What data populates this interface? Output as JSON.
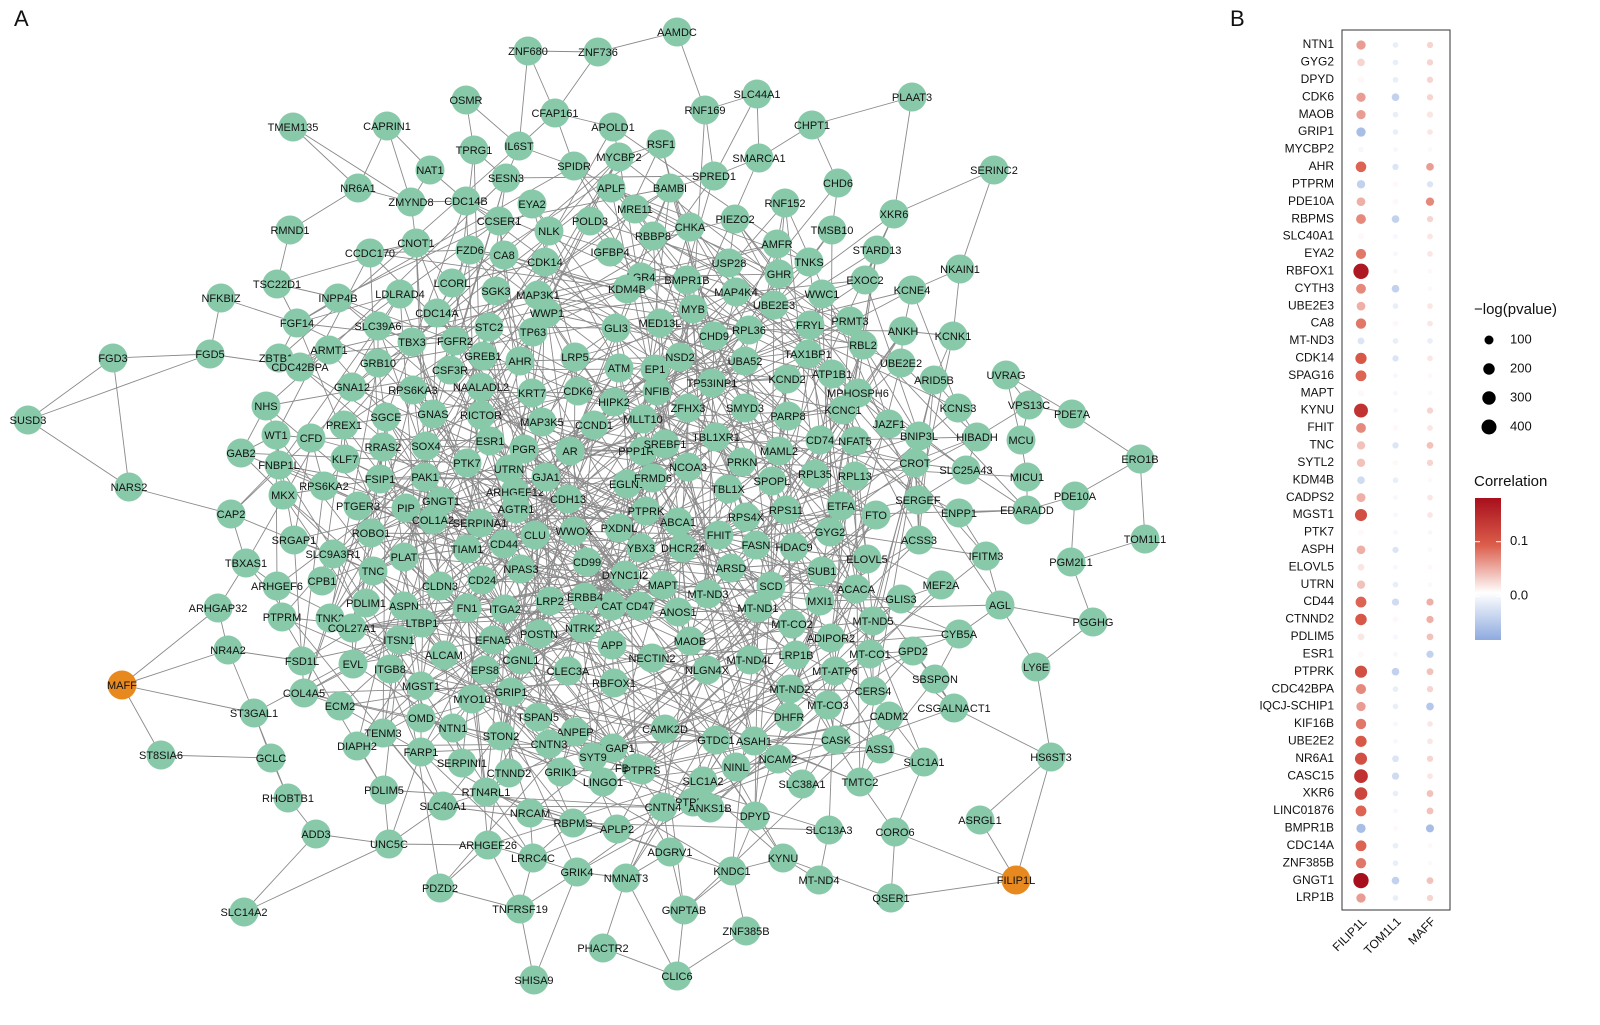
{
  "panels": [
    "A",
    "B"
  ],
  "network": {
    "node_color": "#88c9aa",
    "query_color": "#e8891f",
    "edge_color": "#8a8a8a",
    "nodes": [
      "AAMDC",
      "ZNF680",
      "ZNF736",
      "OSMR",
      "SLC44A1",
      "RNF169",
      "CFAP161",
      "PLAAT3",
      "APOLD1",
      "CAPRIN1",
      "TMEM135",
      "CHPT1",
      "RSF1",
      "TPRG1",
      "IL6ST",
      "MYCBP2",
      "SMARCA1",
      "NAT1",
      "SERINC2",
      "SESN3",
      "SPIDR",
      "SPRED1",
      "NR6A1",
      "CHD6",
      "ZMYND8",
      "CDC14B",
      "APLF",
      "BAMBI",
      "RNF152",
      "XKR6",
      "EYA2",
      "CCSER1",
      "MRE11",
      "RMND1",
      "CNOT1",
      "POLD3",
      "CHKA",
      "PIEZO2",
      "TMSB10",
      "NLK",
      "FZD6",
      "IGFBP4",
      "CA8",
      "RBBP8",
      "STARD13",
      "CCDC170",
      "AMFR",
      "CDK14",
      "USP28",
      "TNKS",
      "TSC22D1",
      "NFKBIZ",
      "LCORL",
      "GHR",
      "NKAIN1",
      "LDLRAD4",
      "MAP3K1",
      "LGR4",
      "KDM4B",
      "BMPR1B",
      "EXOC2",
      "INPP4B",
      "SGK3",
      "MAP4K4",
      "KCNE4",
      "UBE2E3",
      "WWC1",
      "FGF14",
      "CDC14A",
      "WWP1",
      "SLC39A6",
      "MYB",
      "STC2",
      "TP63",
      "GLI3",
      "MED13L",
      "FRYL",
      "PRMT3",
      "ANKH",
      "KCNK1",
      "ARMT1",
      "FGFR2",
      "TBX3",
      "RPL36",
      "CHD9",
      "RBL2",
      "GRB10",
      "LRP5",
      "TAX1BP1",
      "FGD3",
      "FGD5",
      "ZBTB18",
      "GREB1",
      "ATM",
      "EP1",
      "NSD2",
      "UBA52",
      "UBE2E2",
      "CDC42BPA",
      "GNA12",
      "AHR",
      "ATP1B1",
      "ARID5B",
      "UVRAG",
      "CSF3R",
      "RPS6KA3",
      "NAALADL2",
      "KRT7",
      "CDK6",
      "NFIB",
      "TP53INP1",
      "KCND2",
      "MPHOSPH6",
      "NHS",
      "HIPK2",
      "PREX1",
      "SGCE",
      "RICTOR",
      "GNAS",
      "ZFHX3",
      "SMYD3",
      "KCNS3",
      "VPS13C",
      "PDE7A",
      "WT1",
      "CFD",
      "MAP3K5",
      "MLLT10",
      "PARP8",
      "KCNC1",
      "JAZF1",
      "HIBADH",
      "ESR1",
      "CCND1",
      "GAB2",
      "RRAS2",
      "SOX4",
      "PGR",
      "AR",
      "PPP1R9A",
      "TBL1XR1",
      "SREBF1",
      "CD74",
      "NFAT5",
      "BNIP3L",
      "MCU",
      "ERO1B",
      "FNBP1L",
      "KLF7",
      "PTK7",
      "UTRN",
      "MAML2",
      "CROT",
      "SLC25A43",
      "MICU1",
      "NARS2",
      "FSIP1",
      "PAK1",
      "GNGT1",
      "ARHGEF12",
      "GJA1",
      "EGLN1",
      "FRMD6",
      "PRKN",
      "RPL35",
      "RPL13",
      "SPOPL",
      "RPS6KA2",
      "NCOA3",
      "TBL1X",
      "MKX",
      "PTGER3",
      "PIP",
      "CDH13",
      "ETFA",
      "FTO",
      "SERGEF",
      "PDE10A",
      "CAP2",
      "COL1A2",
      "SERPINA1",
      "AGTR1",
      "PTPRK",
      "ABCA1",
      "RPS4X",
      "RPS11",
      "ENPP1",
      "EDARADD",
      "TOM1L1",
      "SRGAP1",
      "ROBO1",
      "CLU",
      "WWOX",
      "PXDNL",
      "FHIT",
      "FASN",
      "HDAC9",
      "GYG2",
      "TIAM1",
      "CD44",
      "YBX3",
      "DHCR24",
      "ACSS3",
      "IFITM3",
      "SLC9A3R1",
      "PLAT",
      "CD99",
      "DYNC1I2",
      "ARSD",
      "SUB1",
      "ELOVL5",
      "TBXAS1",
      "CD24",
      "NPAS3",
      "CLDN3",
      "PGM2L1",
      "TNC",
      "ARHGEF6",
      "CPB1",
      "CAT",
      "CD47",
      "MAPT",
      "SCD",
      "MT-ND3",
      "ACACA",
      "MEF2A",
      "AGL",
      "GLIS3",
      "LRP2",
      "ERBB4",
      "ASPN",
      "PDLIM1",
      "FN1",
      "ITGA2",
      "MXI1",
      "MT-ND1",
      "ANOS1",
      "ARHGAP32",
      "PTPRM",
      "MT-ND5",
      "PGGHG",
      "TNK2",
      "COL27A1",
      "LTBP1",
      "EFNA5",
      "POSTN",
      "NTRK2",
      "MT-CO2",
      "CYB5A",
      "NR4A2",
      "ITSN1",
      "APP",
      "MAOB",
      "ADIPOR2",
      "GPD2",
      "MT-CO1",
      "FSD1L",
      "NECTIN2",
      "MT-ND4L",
      "LRP1B",
      "LY6E",
      "EVL",
      "ITGB8",
      "ALCAM",
      "CGNL1",
      "MT-ATP6",
      "EPS8",
      "NLGN4X",
      "CLEC3A",
      "COL4A5",
      "MGST1",
      "MT-ND2",
      "SBSPON",
      "ECM2",
      "MYO10",
      "GRIP1",
      "RBFOX1",
      "CERS4",
      "MT-CO3",
      "ST3GAL1",
      "CSGALNACT1",
      "CADM2",
      "OMD",
      "TSPAN5",
      "ANPEP",
      "CAMK2D",
      "GTDC1",
      "DHFR",
      "TENM3",
      "NTN1",
      "CASK",
      "ASAH1",
      "DIAPH2",
      "STON2",
      "DLGAP1",
      "FBXO32",
      "ASS1",
      "FARP1",
      "CNTN3",
      "SYT9",
      "NCAM2",
      "ST8SIA6",
      "GCLC",
      "SERPINI1",
      "SLC1A2",
      "NINL",
      "CTNND2",
      "GRIK1",
      "PTPRS",
      "HS6ST3",
      "SLC1A1",
      "RTN4RL1",
      "LINGO1",
      "TMTC2",
      "SLC38A1",
      "PTPRT",
      "PDLIM5",
      "RHOBTB1",
      "SLC40A1",
      "ANKS1B",
      "NRCAM",
      "ASRGL1",
      "CNTN4",
      "DPYD",
      "RBPMS",
      "APLP2",
      "ADD3",
      "SLC13A3",
      "CORO6",
      "UNC5C",
      "ARHGEF26",
      "LRRC4C",
      "ADGRV1",
      "KYNU",
      "PDZD2",
      "GRIK4",
      "NMNAT3",
      "KNDC1",
      "MT-ND4",
      "QSER1",
      "SLC14A2",
      "TNFRSF19",
      "GNPTAB",
      "ZNF385B",
      "PHACTR2",
      "CLIC6",
      "SHISA9",
      "SUSD3"
    ],
    "query_nodes": [
      "MAFF",
      "FILIP1L"
    ]
  },
  "chart_data": {
    "type": "dot",
    "categories": [
      "NTN1",
      "GYG2",
      "DPYD",
      "CDK6",
      "MAOB",
      "GRIP1",
      "MYCBP2",
      "AHR",
      "PTPRM",
      "PDE10A",
      "RBPMS",
      "SLC40A1",
      "EYA2",
      "RBFOX1",
      "CYTH3",
      "UBE2E3",
      "CA8",
      "MT-ND3",
      "CDK14",
      "SPAG16",
      "MAPT",
      "KYNU",
      "FHIT",
      "TNC",
      "SYTL2",
      "KDM4B",
      "CADPS2",
      "MGST1",
      "PTK7",
      "ASPH",
      "ELOVL5",
      "UTRN",
      "CD44",
      "CTNND2",
      "PDLIM5",
      "ESR1",
      "PTPRK",
      "CDC42BPA",
      "IQCJ-SCHIP1",
      "KIF16B",
      "UBE2E2",
      "NR6A1",
      "CASC15",
      "XKR6",
      "LINC01876",
      "BMPR1B",
      "CDC14A",
      "ZNF385B",
      "GNGT1",
      "LRP1B"
    ],
    "series": [
      {
        "name": "FILIP1L",
        "values": [
          0.06,
          0.03,
          0.01,
          0.06,
          0.06,
          -0.06,
          0,
          0.09,
          -0.04,
          0.05,
          0.07,
          0.01,
          0.08,
          0.17,
          0.07,
          0.05,
          0.08,
          -0.02,
          0.1,
          0.09,
          0.01,
          0.14,
          0.07,
          0.04,
          0.04,
          -0.03,
          0.05,
          0.11,
          0.01,
          0.05,
          0.02,
          0.04,
          0.09,
          0.1,
          0.02,
          0.01,
          0.11,
          0.07,
          0.06,
          0.08,
          0.1,
          0.11,
          0.14,
          0.12,
          0.09,
          -0.06,
          0.09,
          0.08,
          0.18,
          0.06
        ],
        "sizes": [
          110,
          60,
          40,
          110,
          110,
          110,
          20,
          160,
          80,
          90,
          130,
          30,
          140,
          420,
          130,
          90,
          150,
          40,
          190,
          170,
          30,
          330,
          130,
          80,
          80,
          60,
          100,
          230,
          20,
          90,
          40,
          80,
          170,
          200,
          40,
          30,
          230,
          140,
          110,
          150,
          190,
          230,
          320,
          260,
          170,
          110,
          170,
          150,
          420,
          110
        ]
      },
      {
        "name": "TOM1L1",
        "values": [
          -0.01,
          -0.01,
          -0.01,
          -0.04,
          -0.01,
          -0.01,
          0,
          -0.02,
          0.01,
          0.01,
          -0.04,
          0,
          0,
          0,
          -0.04,
          -0.01,
          0.01,
          -0.01,
          -0.02,
          0,
          0,
          0,
          0.01,
          -0.02,
          0.01,
          -0.01,
          0,
          0,
          0,
          -0.02,
          0,
          -0.01,
          -0.03,
          0.01,
          0,
          0,
          -0.04,
          -0.01,
          -0.01,
          0,
          0,
          -0.02,
          -0.03,
          -0.01,
          0,
          0.01,
          -0.01,
          -0.01,
          -0.04,
          -0.01
        ],
        "sizes": [
          20,
          20,
          20,
          60,
          20,
          20,
          10,
          30,
          20,
          20,
          60,
          10,
          10,
          10,
          60,
          20,
          20,
          20,
          30,
          10,
          10,
          10,
          20,
          30,
          20,
          20,
          10,
          10,
          10,
          30,
          10,
          20,
          50,
          20,
          10,
          10,
          60,
          20,
          20,
          10,
          10,
          40,
          50,
          20,
          10,
          10,
          20,
          20,
          60,
          20
        ]
      },
      {
        "name": "MAFF",
        "values": [
          0.03,
          0.03,
          0.03,
          0.03,
          0.02,
          0.02,
          0.01,
          0.06,
          -0.02,
          0.07,
          0.03,
          0.02,
          0.02,
          0.01,
          0.01,
          0.02,
          0.02,
          -0.01,
          0.02,
          0.01,
          0.01,
          0.03,
          0.02,
          0.04,
          0.03,
          0.01,
          0.02,
          0.02,
          0,
          0.01,
          0.01,
          0.01,
          0.05,
          0.05,
          0.04,
          -0.04,
          0.04,
          0.03,
          -0.05,
          0.02,
          0.02,
          0.03,
          0.02,
          0.04,
          0.04,
          -0.06,
          0.01,
          0.01,
          0.04,
          0.03
        ],
        "sizes": [
          30,
          30,
          30,
          30,
          30,
          20,
          10,
          60,
          30,
          80,
          30,
          20,
          20,
          10,
          10,
          20,
          20,
          20,
          20,
          10,
          10,
          30,
          20,
          40,
          30,
          10,
          20,
          20,
          10,
          10,
          10,
          10,
          50,
          50,
          40,
          50,
          40,
          30,
          60,
          20,
          20,
          30,
          20,
          40,
          40,
          70,
          10,
          10,
          40,
          30
        ]
      }
    ],
    "size_legend": {
      "title": "−log(pvalue)",
      "values": [
        100,
        200,
        300,
        400
      ]
    },
    "color_legend": {
      "title": "Correlation",
      "clim": [
        -0.08,
        0.18
      ],
      "colors": [
        "#8eaadf",
        "#ffffff",
        "#dc5e4c",
        "#a80f1c"
      ],
      "ticks": [
        {
          "value": 0,
          "label": "0.0"
        },
        0.1
      ]
    }
  }
}
